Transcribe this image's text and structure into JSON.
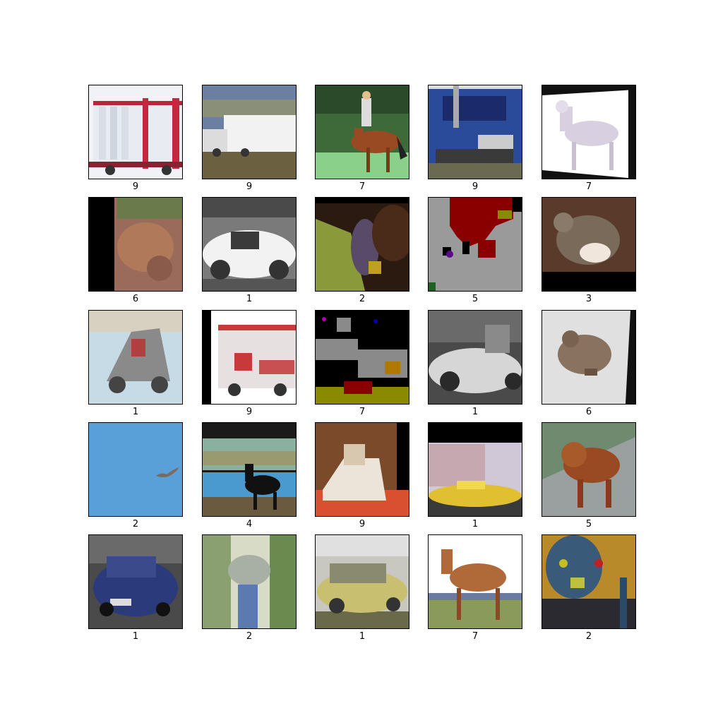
{
  "grid": {
    "rows": 5,
    "cols": 5,
    "labels": [
      "9",
      "9",
      "7",
      "9",
      "7",
      "6",
      "1",
      "2",
      "5",
      "3",
      "1",
      "9",
      "7",
      "1",
      "6",
      "2",
      "4",
      "9",
      "1",
      "5",
      "1",
      "2",
      "1",
      "7",
      "2"
    ],
    "thumbnails": [
      "truck-red-white",
      "truck-white-trailer",
      "horse-rider",
      "truck-blue-front",
      "horse-white",
      "frog-brown-left-pad",
      "car-white-convertible",
      "bird-dark",
      "noise-red-grey",
      "cat-bottom-pad",
      "truck-grey-cabin",
      "firetruck-white-red",
      "noise-black-grey",
      "car-silver",
      "frog-grey",
      "bird-in-sky",
      "deer-black-top-pad",
      "truck-orange-right-pad",
      "car-yellow-top-pad",
      "dog-brown",
      "car-blue",
      "bird-ostrich-green",
      "car-yellow",
      "horse-brown",
      "bird-ostrich-dark"
    ]
  }
}
